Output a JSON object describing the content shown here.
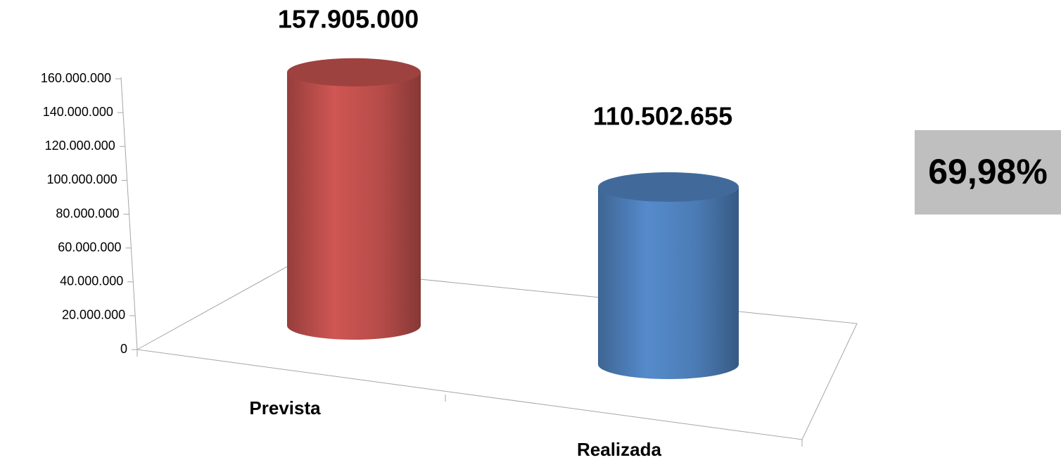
{
  "chart_data": {
    "type": "bar",
    "categories": [
      "Prevista",
      "Realizada"
    ],
    "values": [
      157905000,
      110502655
    ],
    "value_labels": [
      "157.905.000",
      "110.502.655"
    ],
    "colors": [
      "#c0504d",
      "#4f81bd"
    ],
    "ylim": [
      0,
      160000000
    ],
    "yticks": [
      0,
      {
        "value": 20000000,
        "label": "20.000.000"
      },
      {
        "value": 40000000,
        "label": "40.000.000"
      },
      {
        "value": 60000000,
        "label": "60.000.000"
      },
      {
        "value": 80000000,
        "label": "80.000.000"
      },
      {
        "value": 100000000,
        "label": "100.000.000"
      },
      {
        "value": 120000000,
        "label": "120.000.000"
      },
      {
        "value": 140000000,
        "label": "140.000.000"
      },
      {
        "value": 160000000,
        "label": "160.000.000"
      }
    ],
    "grid": false,
    "annotation": "69,98%"
  }
}
